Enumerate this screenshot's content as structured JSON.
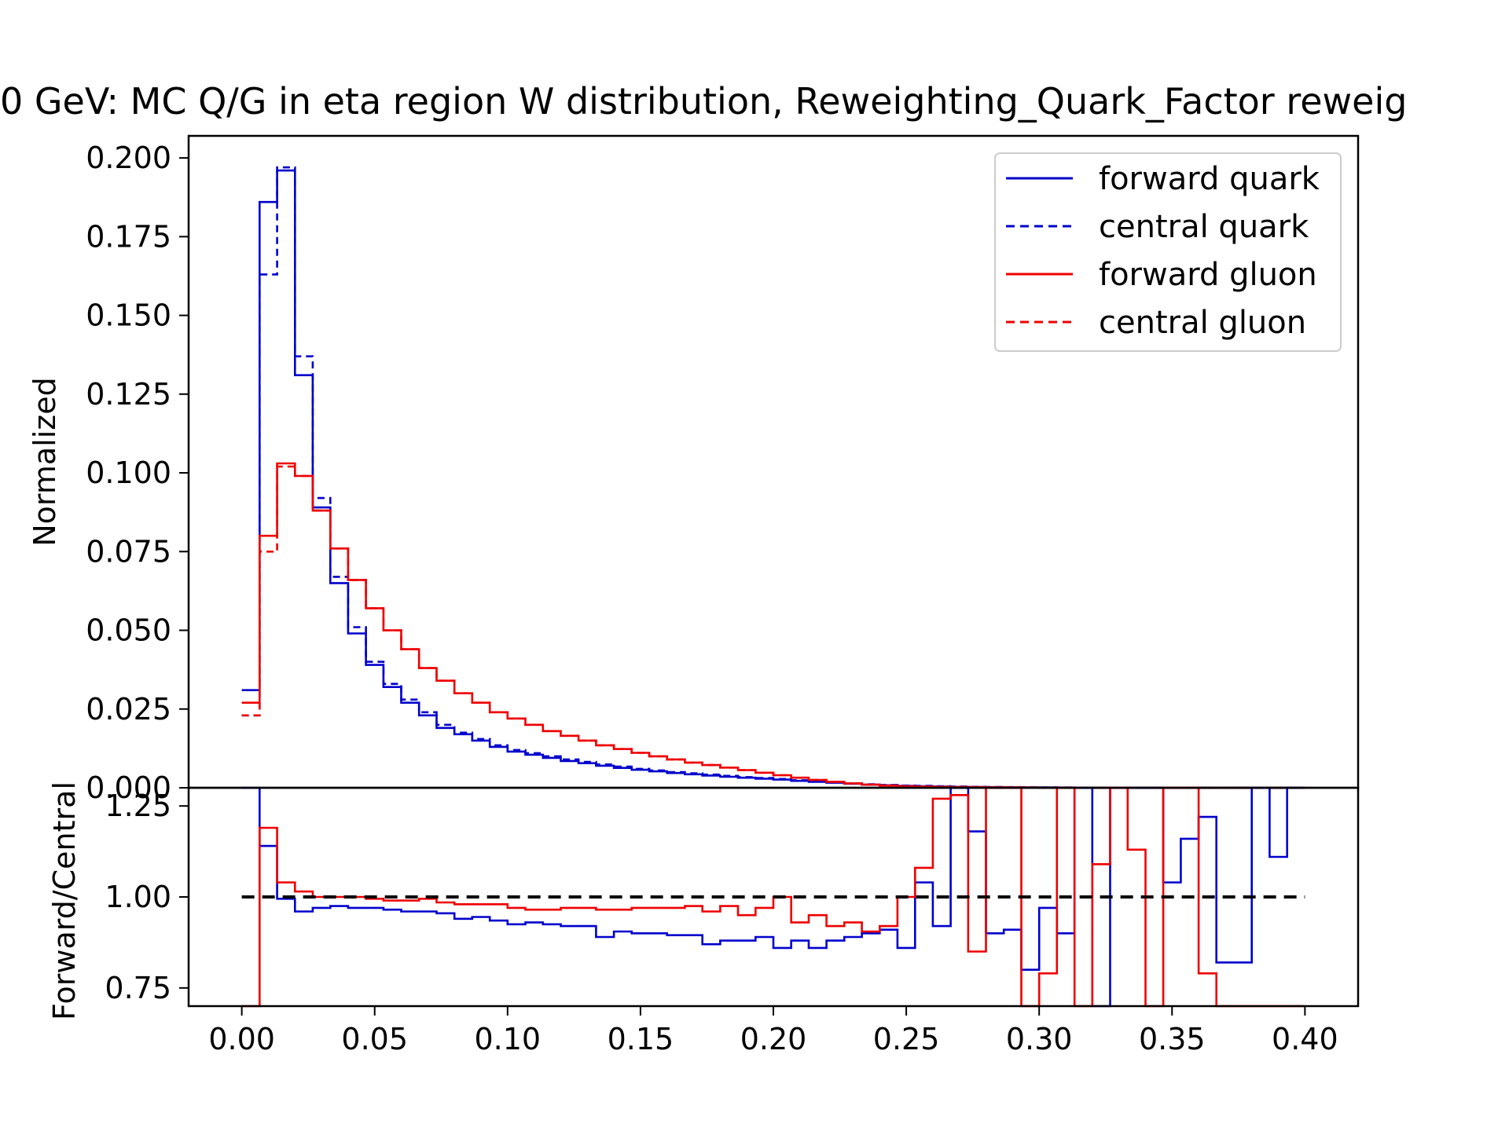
{
  "chart_data": {
    "title": "0 GeV: MC Q/G in eta region W distribution, Reweighting_Quark_Factor reweig",
    "colors": {
      "quark": "#0000cc",
      "gluon": "#ee0000",
      "reference": "#000000"
    },
    "top": {
      "type": "histogram-step",
      "ylabel": "Normalized",
      "xlim": [
        -0.02,
        0.42
      ],
      "ylim": [
        0,
        0.207
      ],
      "yticks": [
        "0.000",
        "0.025",
        "0.050",
        "0.075",
        "0.100",
        "0.125",
        "0.150",
        "0.175",
        "0.200"
      ],
      "legend_position": "top-right",
      "bin_edges": [
        0,
        0.0067,
        0.0133,
        0.02,
        0.0267,
        0.0333,
        0.04,
        0.0467,
        0.0533,
        0.06,
        0.0667,
        0.0733,
        0.08,
        0.0867,
        0.0933,
        0.1,
        0.1067,
        0.1133,
        0.12,
        0.1267,
        0.1333,
        0.14,
        0.1467,
        0.1533,
        0.16,
        0.1667,
        0.1733,
        0.18,
        0.1867,
        0.1933,
        0.2,
        0.2067,
        0.2133,
        0.22,
        0.2267,
        0.2333,
        0.24,
        0.2467,
        0.2533,
        0.26,
        0.2667,
        0.2733,
        0.28,
        0.2867,
        0.2933,
        0.3,
        0.3067,
        0.3133,
        0.32,
        0.3267,
        0.3333,
        0.34,
        0.3467,
        0.3533,
        0.36,
        0.3667,
        0.3733,
        0.38,
        0.3867,
        0.3933,
        0.4
      ],
      "series": [
        {
          "name": "forward quark",
          "color_key": "quark",
          "dash": false,
          "values": [
            0.031,
            0.186,
            0.196,
            0.131,
            0.089,
            0.065,
            0.049,
            0.039,
            0.032,
            0.027,
            0.023,
            0.019,
            0.017,
            0.015,
            0.013,
            0.0115,
            0.0105,
            0.0095,
            0.0085,
            0.0078,
            0.007,
            0.0063,
            0.0057,
            0.0052,
            0.0047,
            0.0043,
            0.0039,
            0.0035,
            0.0032,
            0.0029,
            0.0026,
            0.0022,
            0.0019,
            0.0016,
            0.0013,
            0.001,
            0.0008,
            0.0006,
            0.0005,
            0.0004,
            0.0003,
            0.00025,
            0.0002,
            0.00015,
            0.0001,
            0.0001,
            8e-05,
            6e-05,
            5e-05,
            4e-05,
            3e-05,
            3e-05,
            2e-05,
            2e-05,
            1e-05,
            1e-05,
            1e-05,
            1e-05,
            1e-05,
            1e-05
          ]
        },
        {
          "name": "central quark",
          "color_key": "quark",
          "dash": true,
          "values": [
            0.023,
            0.163,
            0.197,
            0.137,
            0.092,
            0.067,
            0.051,
            0.04,
            0.033,
            0.028,
            0.024,
            0.02,
            0.0175,
            0.0155,
            0.0135,
            0.012,
            0.011,
            0.01,
            0.009,
            0.0082,
            0.0074,
            0.0067,
            0.006,
            0.0055,
            0.005,
            0.0046,
            0.0042,
            0.0038,
            0.0034,
            0.0031,
            0.0028,
            0.0024,
            0.002,
            0.0017,
            0.0014,
            0.0011,
            0.0009,
            0.0007,
            0.0006,
            0.0005,
            0.0004,
            0.0003,
            0.00025,
            0.0002,
            0.00015,
            0.0001,
            8e-05,
            6e-05,
            5e-05,
            4e-05,
            3e-05,
            3e-05,
            2e-05,
            2e-05,
            1e-05,
            1e-05,
            1e-05,
            1e-05,
            1e-05,
            1e-05
          ]
        },
        {
          "name": "forward gluon",
          "color_key": "gluon",
          "dash": false,
          "values": [
            0.027,
            0.08,
            0.103,
            0.099,
            0.088,
            0.076,
            0.066,
            0.057,
            0.05,
            0.044,
            0.038,
            0.034,
            0.03,
            0.027,
            0.024,
            0.022,
            0.02,
            0.018,
            0.0165,
            0.015,
            0.0135,
            0.0123,
            0.0111,
            0.01,
            0.009,
            0.008,
            0.0072,
            0.0064,
            0.0056,
            0.0048,
            0.004,
            0.0032,
            0.0025,
            0.0019,
            0.0014,
            0.001,
            0.0007,
            0.0005,
            0.0004,
            0.0003,
            0.00025,
            0.0002,
            0.00015,
            0.0001,
            8e-05,
            6e-05,
            5e-05,
            4e-05,
            3e-05,
            3e-05,
            2e-05,
            2e-05,
            2e-05,
            1e-05,
            1e-05,
            1e-05,
            1e-05,
            1e-05,
            1e-05,
            1e-05
          ]
        },
        {
          "name": "central gluon",
          "color_key": "gluon",
          "dash": true,
          "values": [
            0.023,
            0.075,
            0.102,
            0.099,
            0.088,
            0.076,
            0.066,
            0.057,
            0.05,
            0.044,
            0.038,
            0.034,
            0.03,
            0.027,
            0.024,
            0.022,
            0.02,
            0.018,
            0.0165,
            0.015,
            0.0135,
            0.0123,
            0.0111,
            0.01,
            0.009,
            0.008,
            0.0072,
            0.0064,
            0.0056,
            0.0048,
            0.004,
            0.0032,
            0.0025,
            0.0019,
            0.0014,
            0.001,
            0.0007,
            0.0005,
            0.0004,
            0.0003,
            0.00025,
            0.0002,
            0.00015,
            0.0001,
            8e-05,
            6e-05,
            5e-05,
            4e-05,
            3e-05,
            3e-05,
            2e-05,
            2e-05,
            2e-05,
            1e-05,
            1e-05,
            1e-05,
            1e-05,
            1e-05,
            1e-05,
            1e-05
          ]
        }
      ]
    },
    "bottom": {
      "type": "ratio-step",
      "ylabel": "Forward/Central",
      "xlabel": "",
      "xlim": [
        -0.02,
        0.42
      ],
      "ylim": [
        0.7,
        1.3
      ],
      "yticks": [
        "0.75",
        "1.00",
        "1.25"
      ],
      "xticks": [
        "0.00",
        "0.05",
        "0.10",
        "0.15",
        "0.20",
        "0.25",
        "0.30",
        "0.35",
        "0.40"
      ],
      "reference_line": 1.0,
      "series": [
        {
          "name": "quark ratio",
          "color_key": "quark",
          "values": [
            1.35,
            1.14,
            0.995,
            0.96,
            0.97,
            0.975,
            0.97,
            0.97,
            0.965,
            0.96,
            0.96,
            0.955,
            0.94,
            0.945,
            0.935,
            0.925,
            0.93,
            0.925,
            0.92,
            0.92,
            0.89,
            0.905,
            0.9,
            0.9,
            0.895,
            0.895,
            0.87,
            0.88,
            0.88,
            0.89,
            0.86,
            0.88,
            0.86,
            0.88,
            0.89,
            0.9,
            0.91,
            0.86,
            1.04,
            0.92,
            1.35,
            1.18,
            0.9,
            0.91,
            0.8,
            0.97,
            0.9,
            1.35,
            0.7,
            1.35,
            1.35,
            1.35,
            1.04,
            1.16,
            1.22,
            0.82,
            0.82,
            1.33,
            1.11,
            1.33
          ]
        },
        {
          "name": "gluon ratio",
          "color_key": "gluon",
          "values": [
            0.7,
            1.19,
            1.04,
            1.015,
            1.0,
            1.0,
            1.0,
            0.995,
            0.99,
            0.99,
            0.995,
            0.985,
            0.98,
            0.98,
            0.98,
            0.97,
            0.965,
            0.965,
            0.97,
            0.97,
            0.965,
            0.965,
            0.97,
            0.97,
            0.97,
            0.975,
            0.96,
            0.975,
            0.95,
            0.97,
            1.0,
            0.93,
            0.95,
            0.92,
            0.93,
            0.905,
            0.92,
            1.0,
            1.08,
            1.27,
            1.28,
            0.85,
            1.35,
            1.35,
            0.7,
            0.79,
            1.35,
            0.7,
            1.09,
            1.35,
            1.13,
            0.7,
            1.35,
            1.35,
            0.79,
            0.7,
            0.7,
            0.7,
            0.7,
            0.7
          ]
        }
      ]
    }
  }
}
